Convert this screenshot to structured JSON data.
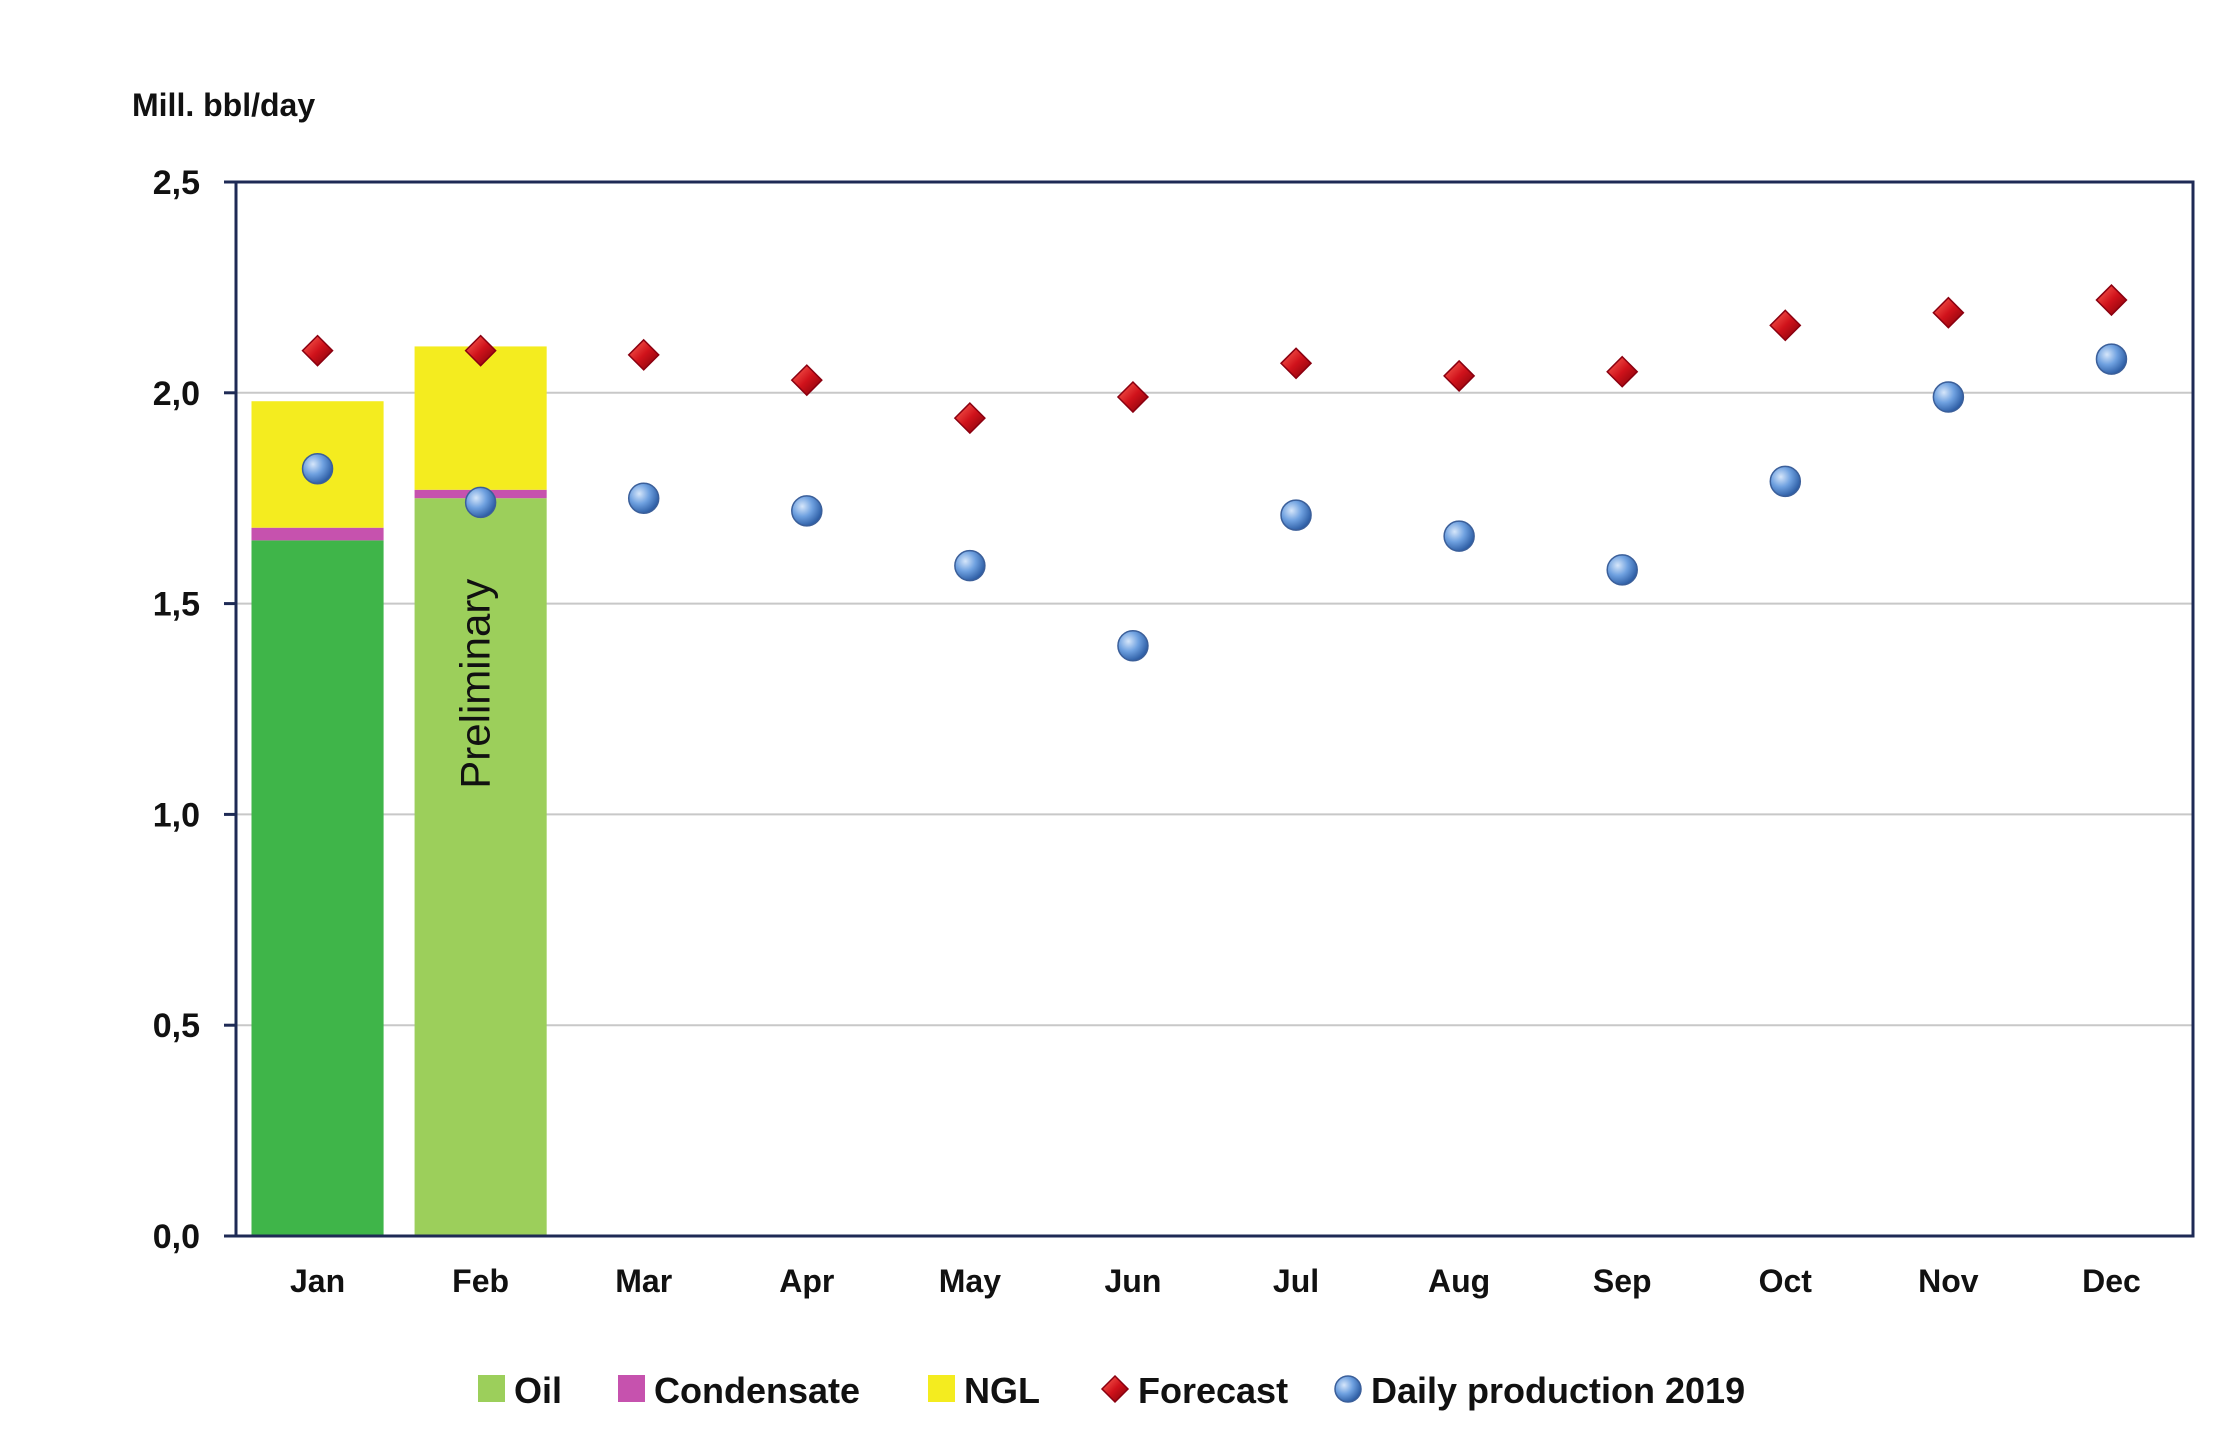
{
  "chart_data": {
    "type": "bar",
    "ylabel": "Mill. bbl/day",
    "ylim": [
      0,
      2.5
    ],
    "y_ticks": [
      "0,0",
      "0,5",
      "1,0",
      "1,5",
      "2,0",
      "2,5"
    ],
    "y_tick_values": [
      0,
      0.5,
      1.0,
      1.5,
      2.0,
      2.5
    ],
    "grid": true,
    "categories": [
      "Jan",
      "Feb",
      "Mar",
      "Apr",
      "May",
      "Jun",
      "Jul",
      "Aug",
      "Sep",
      "Oct",
      "Nov",
      "Dec"
    ],
    "bar_series": [
      {
        "name": "Oil",
        "values": [
          1.65,
          1.75,
          null,
          null,
          null,
          null,
          null,
          null,
          null,
          null,
          null,
          null
        ],
        "colors": [
          "#3fb549",
          "#9ccf5b"
        ]
      },
      {
        "name": "Condensate",
        "values": [
          0.03,
          0.02,
          null,
          null,
          null,
          null,
          null,
          null,
          null,
          null,
          null,
          null
        ],
        "colors": [
          "#c652ae",
          "#c652ae"
        ]
      },
      {
        "name": "NGL",
        "values": [
          0.3,
          0.34,
          null,
          null,
          null,
          null,
          null,
          null,
          null,
          null,
          null,
          null
        ],
        "colors": [
          "#f4ec1f",
          "#f4ec1f"
        ]
      }
    ],
    "point_series": [
      {
        "name": "Forecast",
        "marker": "diamond",
        "color": "#d0121b",
        "values": [
          2.1,
          2.1,
          2.09,
          2.03,
          1.94,
          1.99,
          2.07,
          2.04,
          2.05,
          2.16,
          2.19,
          2.22
        ]
      },
      {
        "name": "Daily production 2019",
        "marker": "circle",
        "color": "#5b92d6",
        "values": [
          1.82,
          1.74,
          1.75,
          1.72,
          1.59,
          1.4,
          1.71,
          1.66,
          1.58,
          1.79,
          1.99,
          2.08
        ]
      }
    ],
    "annotations": [
      {
        "text": "Preliminary",
        "category": "Feb"
      }
    ],
    "legend": {
      "position": "bottom",
      "items": [
        {
          "label": "Oil",
          "marker": "square",
          "color": "#9ccf5b"
        },
        {
          "label": "Condensate",
          "marker": "square",
          "color": "#c652ae"
        },
        {
          "label": "NGL",
          "marker": "square",
          "color": "#f4ec1f"
        },
        {
          "label": "Forecast",
          "marker": "diamond",
          "color": "#d0121b"
        },
        {
          "label": "Daily production 2019",
          "marker": "circle",
          "color": "#5b92d6"
        }
      ]
    },
    "colors": {
      "axis_frame": "#1e2a55",
      "grid": "#c8c8c8"
    }
  }
}
